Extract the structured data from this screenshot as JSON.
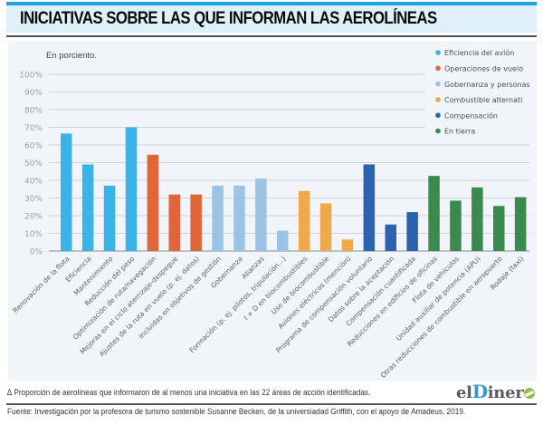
{
  "header": {
    "title": "INICIATIVAS SOBRE LAS QUE INFORMAN LAS AEROLÍNEAS"
  },
  "footer": {
    "note": "∆ Proporción de aerolíneas que informaron de al menos una iniciativa en las 22 áreas de acción identificadas.",
    "source": "Fuente: Investigación por la profesora de turismo sostenible Susanne Becken, de la universiadad Griffith, con el apoyo de Amadeus, 2019.",
    "logo_prefix": "el",
    "logo_d": "D",
    "logo_suffix": "iner"
  },
  "chart_data": {
    "type": "bar",
    "title": "",
    "ylabel": "En porciento.",
    "xlabel": "",
    "ylim": [
      0,
      100
    ],
    "yticks": [
      0,
      10,
      20,
      30,
      40,
      50,
      60,
      70,
      80,
      90,
      100
    ],
    "ytick_labels": [
      "0%",
      "10%",
      "20%",
      "30%",
      "40%",
      "50%",
      "60%",
      "70%",
      "80%",
      "90%",
      "100%"
    ],
    "grid": true,
    "legend_position": "top-right",
    "legend": [
      {
        "name": "Eficiencia del avión",
        "color": "#3ab4e6"
      },
      {
        "name": "Operaciones de vuelo",
        "color": "#e0663a"
      },
      {
        "name": "Gobernanza y personas",
        "color": "#9cc3e4"
      },
      {
        "name": "Combustible alternati",
        "color": "#f0a94a"
      },
      {
        "name": "Compensación",
        "color": "#2b62ae"
      },
      {
        "name": "En tierra",
        "color": "#3a8a4e"
      }
    ],
    "categories": [
      "Renovación de la flota",
      "Eficiencia",
      "Mantenimiento",
      "Reducción del peso",
      "Optimización de ruta/navegación",
      "Mejoras en el ciclo aterrizaje-despegue",
      "Ajustes de la ruta en vuelo (p. ej. datos)",
      "Incluidas en objetivos de gestión",
      "Gobernanza",
      "Alianzas",
      "Formación (p. ej. pilotos, tripulación...)",
      "I + D en biocombustibles",
      "Uso de biocombustible",
      "Aviones eléctricos (mención)",
      "Programa de compensación voluntario",
      "Datos sobre la aceptación",
      "Compensación cuantificada",
      "Reducciones en edificios de oficinas",
      "Flota de vehículos",
      "Unidad auxiliar de potencia (APU)",
      "Otras reducciones de combustible en aeropuerto",
      "Rodaje (taxi)"
    ],
    "groups": [
      0,
      0,
      0,
      0,
      1,
      1,
      1,
      2,
      2,
      2,
      2,
      3,
      3,
      3,
      4,
      4,
      4,
      5,
      5,
      5,
      5,
      5
    ],
    "values": [
      66.5,
      49,
      37,
      70,
      54.5,
      32,
      32,
      37,
      37,
      41,
      11.5,
      34,
      27,
      6.5,
      49,
      15,
      22,
      42.5,
      28.5,
      36,
      25.5,
      30.5
    ]
  }
}
